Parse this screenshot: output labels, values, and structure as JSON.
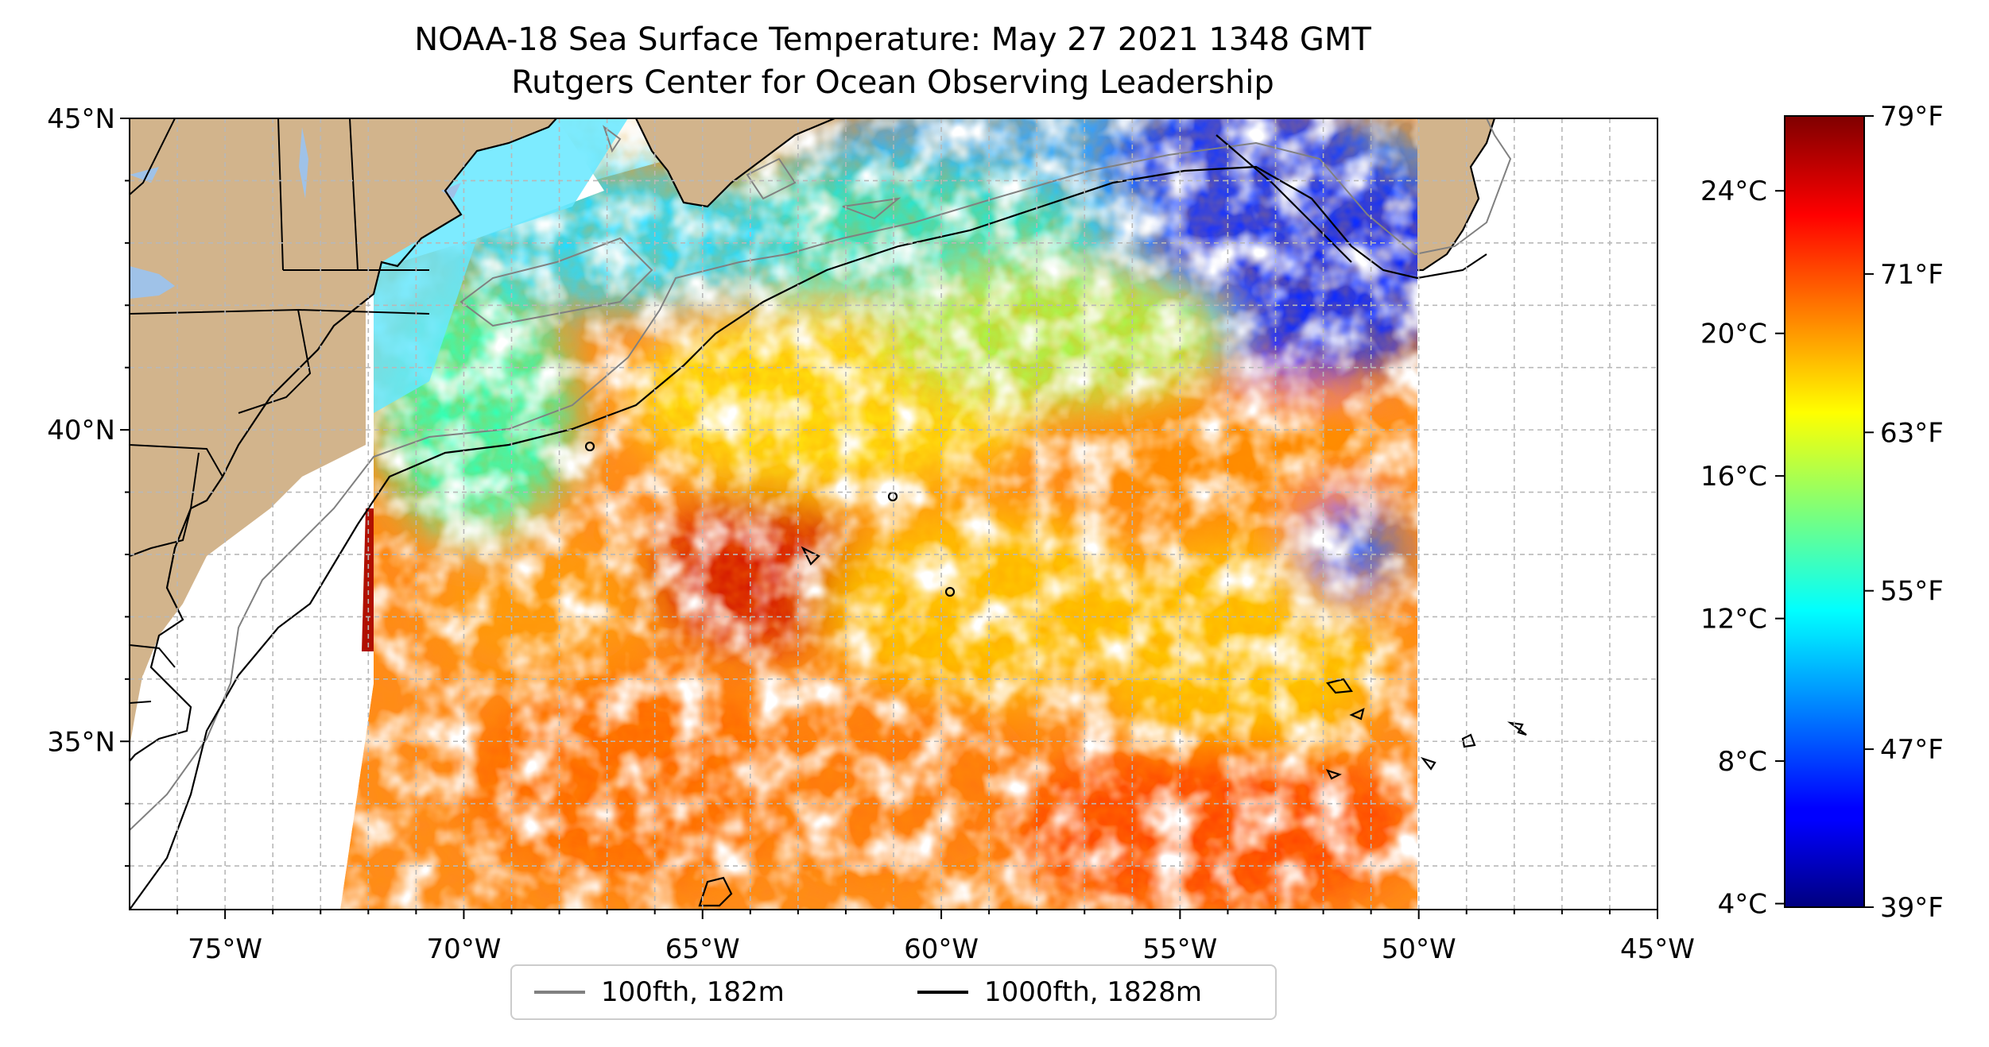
{
  "title": "NOAA-18 Sea Surface Temperature: May 27 2021 1348 GMT",
  "subtitle": "Rutgers Center for Ocean Observing Leadership",
  "map": {
    "lon_range": [
      -77,
      -45
    ],
    "lat_range": [
      32.3,
      45
    ],
    "lon_ticks": [
      {
        "value": -75,
        "label": "75°W"
      },
      {
        "value": -70,
        "label": "70°W"
      },
      {
        "value": -65,
        "label": "65°W"
      },
      {
        "value": -60,
        "label": "60°W"
      },
      {
        "value": -55,
        "label": "55°W"
      },
      {
        "value": -50,
        "label": "50°W"
      },
      {
        "value": -45,
        "label": "45°W"
      }
    ],
    "lat_ticks": [
      {
        "value": 45,
        "label": "45°N"
      },
      {
        "value": 40,
        "label": "40°N"
      },
      {
        "value": 35,
        "label": "35°N"
      }
    ],
    "gridlines": true,
    "land_color": "#d2b48c",
    "lake_color": "#9fc2e8"
  },
  "colorbar": {
    "colormap": "jet",
    "range_celsius": [
      3.9,
      26.1
    ],
    "celsius_ticks": [
      {
        "value": 4,
        "label": "4°C"
      },
      {
        "value": 8,
        "label": "8°C"
      },
      {
        "value": 12,
        "label": "12°C"
      },
      {
        "value": 16,
        "label": "16°C"
      },
      {
        "value": 20,
        "label": "20°C"
      },
      {
        "value": 24,
        "label": "24°C"
      }
    ],
    "fahrenheit_ticks": [
      {
        "value": 39,
        "label": "39°F"
      },
      {
        "value": 47,
        "label": "47°F"
      },
      {
        "value": 55,
        "label": "55°F"
      },
      {
        "value": 63,
        "label": "63°F"
      },
      {
        "value": 71,
        "label": "71°F"
      },
      {
        "value": 79,
        "label": "79°F"
      }
    ]
  },
  "legend": {
    "placement": "bottom-center",
    "items": [
      {
        "label": "100fth, 182m",
        "color": "#808080"
      },
      {
        "label": "1000fth, 1828m",
        "color": "#000000"
      }
    ]
  }
}
